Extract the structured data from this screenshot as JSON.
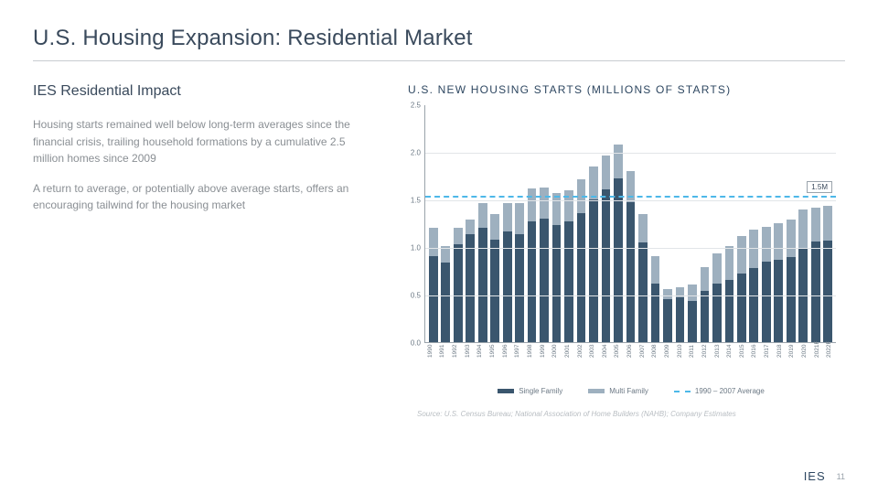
{
  "title": "U.S. Housing Expansion: Residential Market",
  "left": {
    "subtitle": "IES Residential Impact",
    "p1": "Housing starts remained well below long-term averages since the financial crisis, trailing household formations by a cumulative 2.5 million homes since 2009",
    "p2": "A return to average, or potentially above average starts, offers an encouraging tailwind for the housing market"
  },
  "chart": {
    "title": "U.S. NEW HOUSING STARTS (MILLIONS OF STARTS)",
    "ylim": [
      0,
      2.5
    ],
    "yticks": [
      0.0,
      0.5,
      1.0,
      1.5,
      2.0,
      2.5
    ],
    "ytick_labels": [
      "0.0",
      "0.5",
      "1.0",
      "1.5",
      "2.0",
      "2.5"
    ],
    "avg_line_value": 1.55,
    "avg_line_label": "1.5M",
    "colors": {
      "single": "#3a566e",
      "multi": "#9eb0bf",
      "avg_line": "#4db8e8",
      "grid": "#e2e5e8",
      "axis": "#9aa3ab",
      "text": "#6b7884"
    },
    "legend": {
      "single": "Single Family",
      "multi": "Multi Family",
      "avg": "1990 – 2007 Average"
    },
    "categories": [
      "1990",
      "1991",
      "1992",
      "1993",
      "1994",
      "1995",
      "1996",
      "1997",
      "1998",
      "1999",
      "2000",
      "2001",
      "2002",
      "2003",
      "2004",
      "2005",
      "2006",
      "2007",
      "2008",
      "2009",
      "2010",
      "2011",
      "2012",
      "2013",
      "2014",
      "2015",
      "2016",
      "2017",
      "2018",
      "2019",
      "2020",
      "2021F",
      "2022F"
    ],
    "series": {
      "single": [
        0.9,
        0.84,
        1.03,
        1.13,
        1.2,
        1.08,
        1.16,
        1.13,
        1.27,
        1.3,
        1.23,
        1.27,
        1.36,
        1.5,
        1.61,
        1.72,
        1.47,
        1.05,
        0.62,
        0.45,
        0.47,
        0.43,
        0.54,
        0.62,
        0.65,
        0.72,
        0.78,
        0.85,
        0.87,
        0.89,
        0.99,
        1.06,
        1.07
      ],
      "multi": [
        0.3,
        0.17,
        0.17,
        0.16,
        0.26,
        0.27,
        0.3,
        0.33,
        0.35,
        0.33,
        0.34,
        0.33,
        0.35,
        0.35,
        0.35,
        0.36,
        0.33,
        0.3,
        0.28,
        0.11,
        0.11,
        0.18,
        0.25,
        0.31,
        0.36,
        0.4,
        0.4,
        0.36,
        0.38,
        0.4,
        0.4,
        0.35,
        0.36
      ]
    },
    "bar_width_ratio": 0.72
  },
  "source": "Source: U.S. Census Bureau; National Association of Home Builders (NAHB); Company Estimates",
  "footer": {
    "logo": "IES",
    "page": "11"
  }
}
